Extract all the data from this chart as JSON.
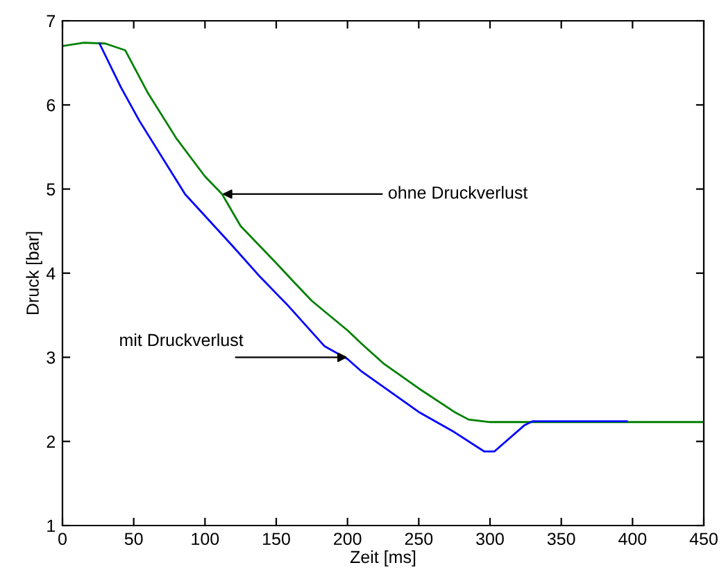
{
  "chart_data": {
    "type": "line",
    "xlabel": "Zeit [ms]",
    "ylabel": "Druck [bar]",
    "xlim": [
      0,
      450
    ],
    "ylim": [
      1,
      7
    ],
    "xticks": [
      0,
      50,
      100,
      150,
      200,
      250,
      300,
      350,
      400,
      450
    ],
    "yticks": [
      1,
      2,
      3,
      4,
      5,
      6,
      7
    ],
    "grid": false,
    "marker": "none",
    "line_style": "solid",
    "series": [
      {
        "color": "#008000",
        "x": [
          0,
          15,
          30,
          44,
          60,
          80,
          100,
          112,
          125,
          150,
          161,
          175,
          200,
          210,
          225,
          250,
          275,
          285,
          300,
          350,
          400,
          450
        ],
        "values": [
          6.7,
          6.74,
          6.73,
          6.65,
          6.14,
          5.6,
          5.15,
          4.94,
          4.56,
          4.12,
          3.92,
          3.67,
          3.32,
          3.16,
          2.93,
          2.63,
          2.35,
          2.26,
          2.23,
          2.23,
          2.23,
          2.23
        ]
      },
      {
        "color": "#0000ff",
        "x": [
          26,
          41,
          54,
          86,
          119,
          139,
          158,
          184,
          200,
          210,
          250,
          275,
          296,
          303,
          324,
          330,
          396
        ],
        "values": [
          6.73,
          6.21,
          5.81,
          4.94,
          4.33,
          3.95,
          3.62,
          3.13,
          2.98,
          2.83,
          2.35,
          2.11,
          1.88,
          1.88,
          2.19,
          2.24,
          2.24
        ]
      }
    ],
    "annotations": [
      {
        "text": "ohne Druckverlust",
        "x": 112,
        "y": 4.94
      },
      {
        "text": "mit Druckverlust",
        "x": 200,
        "y": 3.0
      }
    ]
  }
}
